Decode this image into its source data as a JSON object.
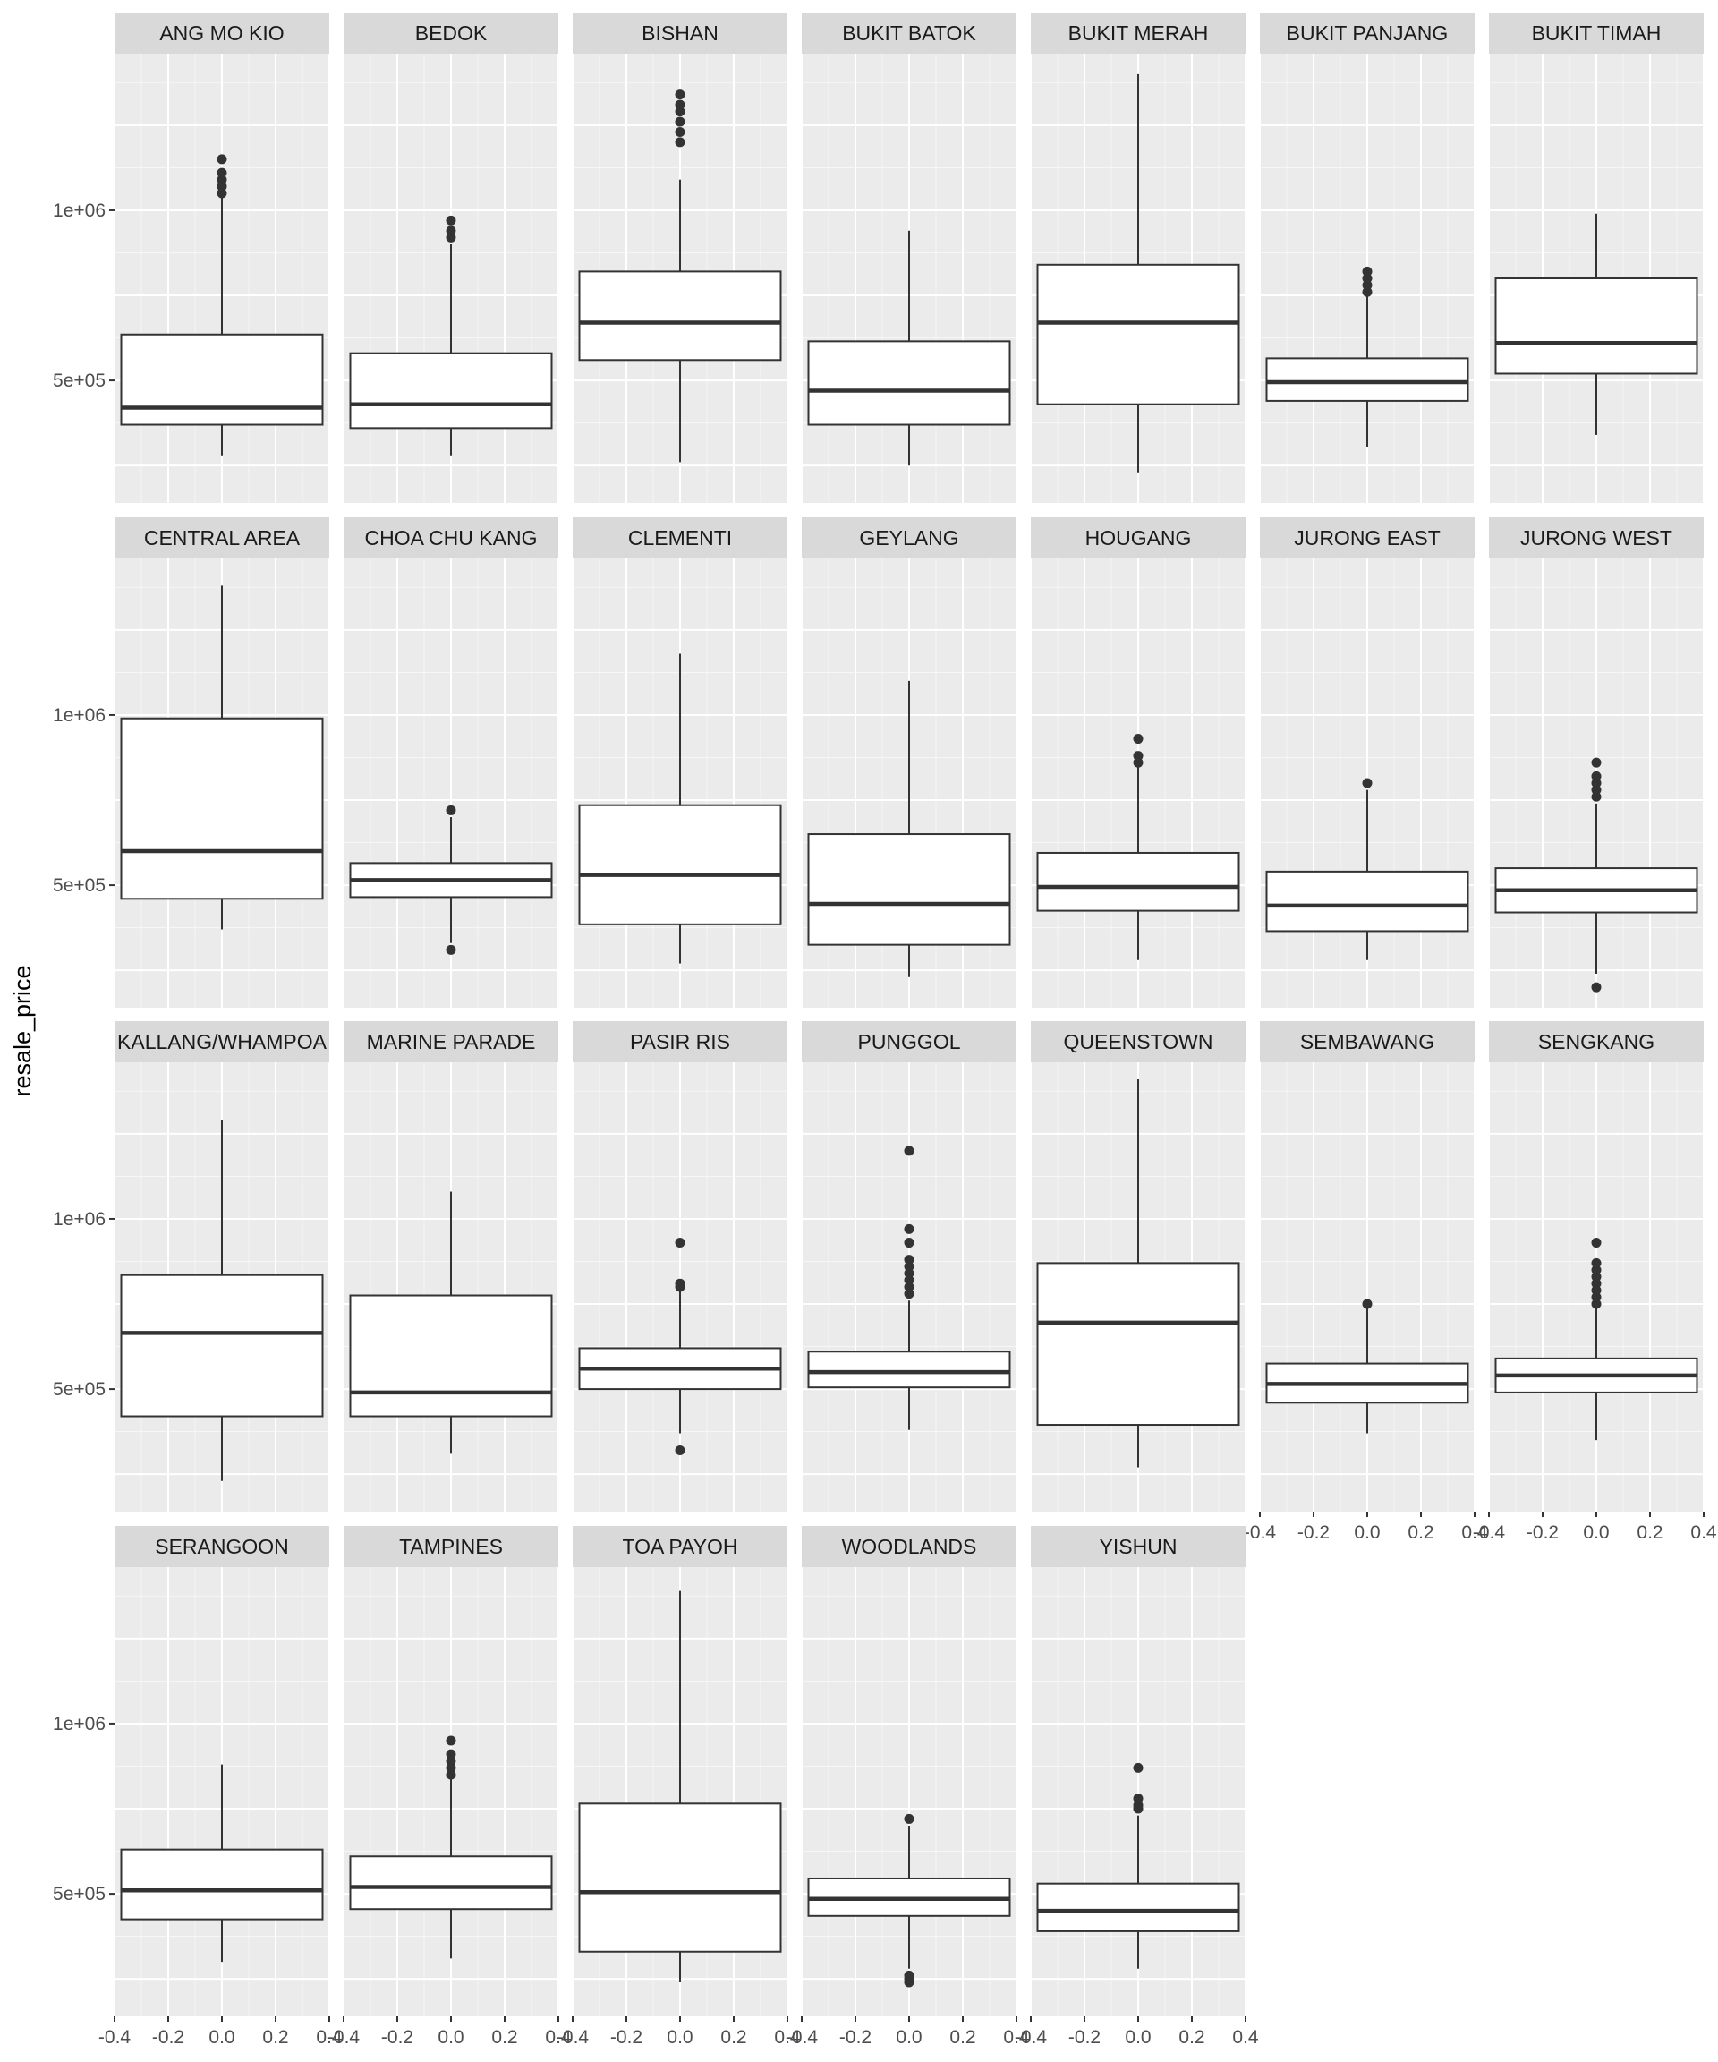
{
  "chart_data": {
    "type": "boxplot",
    "facet_variable": "town",
    "ylabel": "resale_price",
    "xlabel": "",
    "x_ticks": [
      "-0.4",
      "-0.2",
      "0.0",
      "0.2",
      "0.4"
    ],
    "y_ticks": [
      {
        "value": 500000,
        "label": "5e+05"
      },
      {
        "value": 1000000,
        "label": "1e+06"
      }
    ],
    "ylim": [
      140000,
      1460000
    ],
    "xlim": [
      -0.4,
      0.4
    ],
    "facets": [
      {
        "town": "ANG MO KIO",
        "q1": 370000,
        "median": 420000,
        "q3": 635000,
        "lower_whisker": 280000,
        "upper_whisker": 1040000,
        "outliers": [
          1050000,
          1070000,
          1090000,
          1110000,
          1150000
        ]
      },
      {
        "town": "BEDOK",
        "q1": 360000,
        "median": 430000,
        "q3": 580000,
        "lower_whisker": 280000,
        "upper_whisker": 900000,
        "outliers": [
          920000,
          940000,
          970000
        ]
      },
      {
        "town": "BISHAN",
        "q1": 560000,
        "median": 670000,
        "q3": 820000,
        "lower_whisker": 260000,
        "upper_whisker": 1090000,
        "outliers": [
          1200000,
          1230000,
          1260000,
          1290000,
          1310000,
          1340000
        ]
      },
      {
        "town": "BUKIT BATOK",
        "q1": 370000,
        "median": 470000,
        "q3": 615000,
        "lower_whisker": 250000,
        "upper_whisker": 940000,
        "outliers": []
      },
      {
        "town": "BUKIT MERAH",
        "q1": 430000,
        "median": 670000,
        "q3": 840000,
        "lower_whisker": 230000,
        "upper_whisker": 1400000,
        "outliers": []
      },
      {
        "town": "BUKIT PANJANG",
        "q1": 440000,
        "median": 495000,
        "q3": 565000,
        "lower_whisker": 305000,
        "upper_whisker": 750000,
        "outliers": [
          760000,
          780000,
          800000,
          820000
        ]
      },
      {
        "town": "BUKIT TIMAH",
        "q1": 520000,
        "median": 610000,
        "q3": 800000,
        "lower_whisker": 340000,
        "upper_whisker": 990000,
        "outliers": []
      },
      {
        "town": "CENTRAL AREA",
        "q1": 460000,
        "median": 600000,
        "q3": 990000,
        "lower_whisker": 370000,
        "upper_whisker": 1380000,
        "outliers": []
      },
      {
        "town": "CHOA CHU KANG",
        "q1": 465000,
        "median": 515000,
        "q3": 565000,
        "lower_whisker": 330000,
        "upper_whisker": 700000,
        "outliers": [
          310000,
          720000
        ]
      },
      {
        "town": "CLEMENTI",
        "q1": 385000,
        "median": 530000,
        "q3": 735000,
        "lower_whisker": 270000,
        "upper_whisker": 1180000,
        "outliers": []
      },
      {
        "town": "GEYLANG",
        "q1": 325000,
        "median": 445000,
        "q3": 650000,
        "lower_whisker": 230000,
        "upper_whisker": 1100000,
        "outliers": []
      },
      {
        "town": "HOUGANG",
        "q1": 425000,
        "median": 495000,
        "q3": 595000,
        "lower_whisker": 280000,
        "upper_whisker": 850000,
        "outliers": [
          860000,
          880000,
          930000
        ]
      },
      {
        "town": "JURONG EAST",
        "q1": 365000,
        "median": 440000,
        "q3": 540000,
        "lower_whisker": 280000,
        "upper_whisker": 780000,
        "outliers": [
          800000
        ]
      },
      {
        "town": "JURONG WEST",
        "q1": 420000,
        "median": 485000,
        "q3": 550000,
        "lower_whisker": 240000,
        "upper_whisker": 740000,
        "outliers": [
          200000,
          760000,
          780000,
          800000,
          820000,
          860000
        ]
      },
      {
        "town": "KALLANG/WHAMPOA",
        "q1": 420000,
        "median": 665000,
        "q3": 835000,
        "lower_whisker": 230000,
        "upper_whisker": 1290000,
        "outliers": []
      },
      {
        "town": "MARINE PARADE",
        "q1": 420000,
        "median": 490000,
        "q3": 775000,
        "lower_whisker": 310000,
        "upper_whisker": 1080000,
        "outliers": []
      },
      {
        "town": "PASIR RIS",
        "q1": 500000,
        "median": 560000,
        "q3": 620000,
        "lower_whisker": 370000,
        "upper_whisker": 790000,
        "outliers": [
          320000,
          800000,
          810000,
          930000
        ]
      },
      {
        "town": "PUNGGOL",
        "q1": 505000,
        "median": 550000,
        "q3": 610000,
        "lower_whisker": 380000,
        "upper_whisker": 760000,
        "outliers": [
          780000,
          800000,
          820000,
          840000,
          860000,
          880000,
          930000,
          970000,
          1200000
        ]
      },
      {
        "town": "QUEENSTOWN",
        "q1": 395000,
        "median": 695000,
        "q3": 870000,
        "lower_whisker": 270000,
        "upper_whisker": 1410000,
        "outliers": []
      },
      {
        "town": "SEMBAWANG",
        "q1": 460000,
        "median": 515000,
        "q3": 575000,
        "lower_whisker": 370000,
        "upper_whisker": 740000,
        "outliers": [
          750000
        ]
      },
      {
        "town": "SENGKANG",
        "q1": 490000,
        "median": 540000,
        "q3": 590000,
        "lower_whisker": 350000,
        "upper_whisker": 740000,
        "outliers": [
          750000,
          770000,
          790000,
          810000,
          830000,
          850000,
          870000,
          930000
        ]
      },
      {
        "town": "SERANGOON",
        "q1": 425000,
        "median": 510000,
        "q3": 630000,
        "lower_whisker": 300000,
        "upper_whisker": 880000,
        "outliers": []
      },
      {
        "town": "TAMPINES",
        "q1": 455000,
        "median": 520000,
        "q3": 610000,
        "lower_whisker": 310000,
        "upper_whisker": 840000,
        "outliers": [
          850000,
          870000,
          890000,
          910000,
          950000
        ]
      },
      {
        "town": "TOA PAYOH",
        "q1": 330000,
        "median": 505000,
        "q3": 765000,
        "lower_whisker": 240000,
        "upper_whisker": 1390000,
        "outliers": []
      },
      {
        "town": "WOODLANDS",
        "q1": 435000,
        "median": 485000,
        "q3": 545000,
        "lower_whisker": 280000,
        "upper_whisker": 700000,
        "outliers": [
          240000,
          250000,
          260000,
          720000
        ]
      },
      {
        "town": "YISHUN",
        "q1": 390000,
        "median": 450000,
        "q3": 530000,
        "lower_whisker": 280000,
        "upper_whisker": 730000,
        "outliers": [
          750000,
          760000,
          780000,
          870000
        ]
      }
    ]
  },
  "colors": {
    "panel_background": "#ebebeb",
    "grid_major": "#ffffff",
    "strip_background": "#d9d9d9",
    "box_fill": "#ffffff",
    "box_line": "#333333",
    "point": "#333333"
  }
}
